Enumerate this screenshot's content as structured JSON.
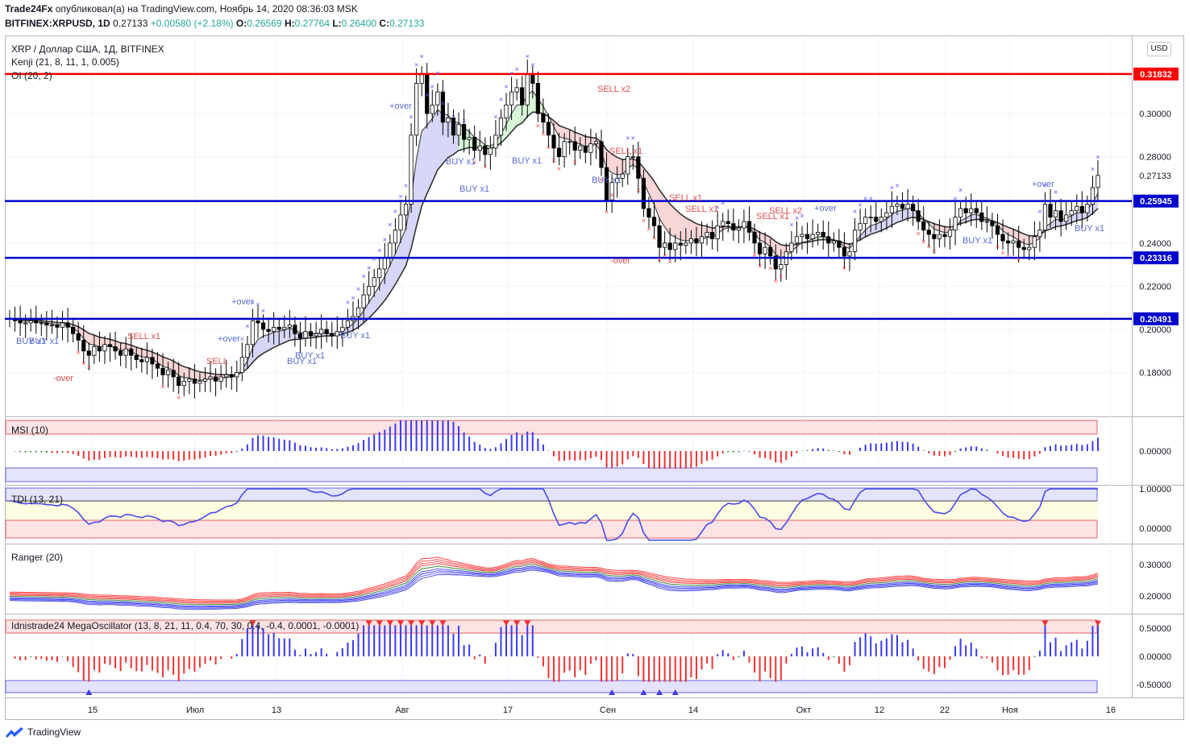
{
  "header": {
    "author": "Trade24Fx",
    "published_text": "опубликовал(а) на TradingView.com, Ноябрь 14, 2020 08:36:03 MSK",
    "symbol": "BITFINEX:XRPUSD, 1D",
    "last": "0.27133",
    "change": "+0.00580 (+2.18%)",
    "o_label": "O:",
    "o": "0.26569",
    "h_label": "H:",
    "h": "0.27764",
    "l_label": "L:",
    "l": "0.26400",
    "c_label": "C:",
    "c": "0.27133"
  },
  "legend": {
    "title": "XRP / Доллар США, 1Д, BITFINEX",
    "kenji": "Kenji (21, 8, 11, 1, 0.005)",
    "oi": "OI (20, 2)"
  },
  "currency_button": "USD",
  "footer": {
    "brand": "TradingView"
  },
  "colors": {
    "up_candle": "#ffffff",
    "down_candle": "#000000",
    "blue_line": "#0000cc",
    "red_line": "#ff0000",
    "buy_marker": "#5555ff",
    "sell_marker": "#ff4444",
    "price_tag_blue": "#0000cc",
    "price_tag_red": "#ff0000"
  },
  "chart_data": [
    {
      "type": "candlestick",
      "name": "XRP / Доллар США, 1Д, BITFINEX",
      "ylim": [
        0.16,
        0.335
      ],
      "price_ticks": [
        "0.30000",
        "0.28000",
        "0.24000",
        "0.22000",
        "0.20000",
        "0.18000"
      ],
      "price_tick_values": [
        0.3,
        0.28,
        0.24,
        0.22,
        0.2,
        0.18
      ],
      "current_price": "0.27133",
      "current_price_value": 0.27133,
      "x_labels": [
        "15",
        "Июл",
        "13",
        "Авг",
        "17",
        "Сен",
        "14",
        "Окт",
        "12",
        "22",
        "Ноя",
        "16"
      ],
      "horizontal_levels": [
        {
          "label": "0.31832",
          "value": 0.31832,
          "color": "#ff0000"
        },
        {
          "label": "0.25945",
          "value": 0.25945,
          "color": "#0000cc"
        },
        {
          "label": "0.23316",
          "value": 0.23316,
          "color": "#0000cc"
        },
        {
          "label": "0.20491",
          "value": 0.20491,
          "color": "#0000cc"
        }
      ],
      "close": [
        0.205,
        0.204,
        0.203,
        0.203,
        0.204,
        0.203,
        0.203,
        0.202,
        0.202,
        0.201,
        0.203,
        0.201,
        0.198,
        0.195,
        0.19,
        0.188,
        0.192,
        0.19,
        0.193,
        0.192,
        0.19,
        0.188,
        0.191,
        0.188,
        0.186,
        0.185,
        0.187,
        0.184,
        0.182,
        0.179,
        0.181,
        0.178,
        0.174,
        0.176,
        0.177,
        0.175,
        0.176,
        0.177,
        0.178,
        0.176,
        0.178,
        0.179,
        0.178,
        0.18,
        0.187,
        0.193,
        0.204,
        0.203,
        0.2,
        0.199,
        0.201,
        0.2,
        0.201,
        0.202,
        0.198,
        0.196,
        0.199,
        0.197,
        0.198,
        0.2,
        0.198,
        0.197,
        0.199,
        0.201,
        0.204,
        0.206,
        0.21,
        0.216,
        0.22,
        0.224,
        0.228,
        0.233,
        0.24,
        0.246,
        0.253,
        0.258,
        0.29,
        0.314,
        0.318,
        0.3,
        0.304,
        0.31,
        0.296,
        0.298,
        0.29,
        0.295,
        0.288,
        0.289,
        0.283,
        0.285,
        0.281,
        0.284,
        0.29,
        0.298,
        0.304,
        0.31,
        0.312,
        0.304,
        0.318,
        0.314,
        0.3,
        0.296,
        0.29,
        0.284,
        0.28,
        0.287,
        0.287,
        0.283,
        0.285,
        0.282,
        0.286,
        0.287,
        0.275,
        0.26,
        0.268,
        0.27,
        0.272,
        0.28,
        0.28,
        0.27,
        0.256,
        0.252,
        0.248,
        0.238,
        0.24,
        0.237,
        0.24,
        0.239,
        0.24,
        0.242,
        0.24,
        0.243,
        0.245,
        0.242,
        0.248,
        0.25,
        0.249,
        0.246,
        0.247,
        0.25,
        0.245,
        0.24,
        0.235,
        0.238,
        0.234,
        0.228,
        0.23,
        0.236,
        0.24,
        0.243,
        0.244,
        0.242,
        0.244,
        0.245,
        0.243,
        0.24,
        0.241,
        0.238,
        0.234,
        0.236,
        0.246,
        0.249,
        0.252,
        0.252,
        0.25,
        0.252,
        0.254,
        0.257,
        0.258,
        0.256,
        0.258,
        0.255,
        0.25,
        0.246,
        0.244,
        0.242,
        0.244,
        0.243,
        0.246,
        0.252,
        0.256,
        0.254,
        0.256,
        0.254,
        0.25,
        0.25,
        0.248,
        0.244,
        0.241,
        0.24,
        0.241,
        0.238,
        0.237,
        0.238,
        0.243,
        0.246,
        0.258,
        0.252,
        0.255,
        0.25,
        0.253,
        0.255,
        0.257,
        0.254,
        0.258,
        0.2657,
        0.27133
      ]
    },
    {
      "type": "histogram",
      "name": "MSI (10)",
      "y_ticks": [
        "0.00000"
      ],
      "y_tick_values": [
        0
      ]
    },
    {
      "type": "line",
      "name": "TDI (13, 21)",
      "y_ticks": [
        "1.00000",
        "0.00000"
      ],
      "y_tick_values": [
        1,
        0
      ]
    },
    {
      "type": "line",
      "name": "Ranger (20)",
      "y_ticks": [
        "0.30000",
        "0.20000"
      ],
      "y_tick_values": [
        0.3,
        0.2
      ]
    },
    {
      "type": "histogram",
      "name": "Idnistrade24 MegaOscillator (13, 8, 21, 11, 0.4, 70, 30, 0.4, -0.4, 0.0001, -0.0001)",
      "y_ticks": [
        "0.50000",
        "0.00000",
        "-0.50000"
      ],
      "y_tick_values": [
        0.5,
        0,
        -0.5
      ]
    }
  ],
  "annotations": {
    "labels": [
      {
        "text": "BUY x1",
        "kind": "buy"
      },
      {
        "text": "BUY x1",
        "kind": "buy"
      },
      {
        "text": "-over",
        "kind": "sell"
      },
      {
        "text": "SELL x1",
        "kind": "sell"
      },
      {
        "text": "SELL",
        "kind": "sell"
      },
      {
        "text": "+over",
        "kind": "buy"
      },
      {
        "text": "+over",
        "kind": "buy"
      },
      {
        "text": "BUY x1",
        "kind": "buy"
      },
      {
        "text": "BUY x1",
        "kind": "buy"
      },
      {
        "text": "BUY x1",
        "kind": "buy"
      },
      {
        "text": "+over",
        "kind": "buy"
      },
      {
        "text": "BUY x1",
        "kind": "buy"
      },
      {
        "text": "BUY x1",
        "kind": "buy"
      },
      {
        "text": "BUY x1",
        "kind": "buy"
      },
      {
        "text": "SELL x2",
        "kind": "sell"
      },
      {
        "text": "SELL x1",
        "kind": "sell"
      },
      {
        "text": "BUY x1",
        "kind": "buy"
      },
      {
        "text": "SELL x1",
        "kind": "sell"
      },
      {
        "text": "SELL x1",
        "kind": "sell"
      },
      {
        "text": "-over",
        "kind": "sell"
      },
      {
        "text": "SELL x2",
        "kind": "sell"
      },
      {
        "text": "SELL x1",
        "kind": "sell"
      },
      {
        "text": "+over",
        "kind": "buy"
      },
      {
        "text": "BUY x1",
        "kind": "buy"
      },
      {
        "text": "+over",
        "kind": "buy"
      },
      {
        "text": "BUY x1",
        "kind": "buy"
      }
    ]
  }
}
